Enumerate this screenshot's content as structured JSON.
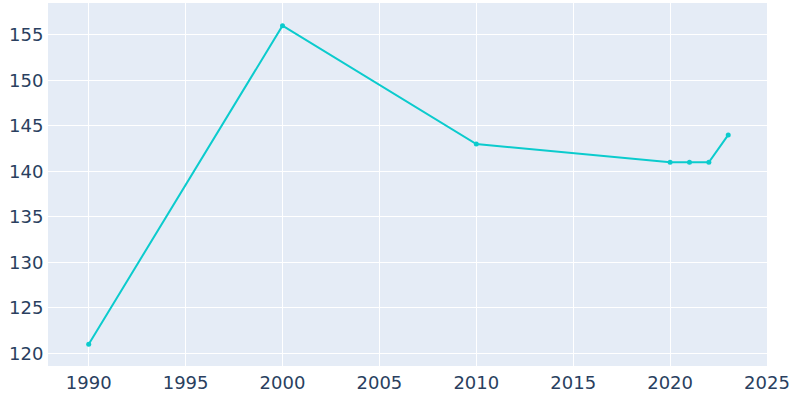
{
  "chart_data": {
    "type": "line",
    "x": [
      1990,
      2000,
      2010,
      2020,
      2021,
      2022,
      2023
    ],
    "values": [
      121,
      156,
      143,
      141,
      141,
      141,
      144
    ],
    "color": "#0bcbcd",
    "marker": "circle",
    "xlim": [
      1987.9,
      2025
    ],
    "xticks": [
      1990,
      1995,
      2000,
      2005,
      2010,
      2015,
      2020,
      2025
    ],
    "ylim": [
      118.6,
      158.5
    ],
    "yticks": [
      120,
      125,
      130,
      135,
      140,
      145,
      150,
      155
    ],
    "grid": true
  }
}
